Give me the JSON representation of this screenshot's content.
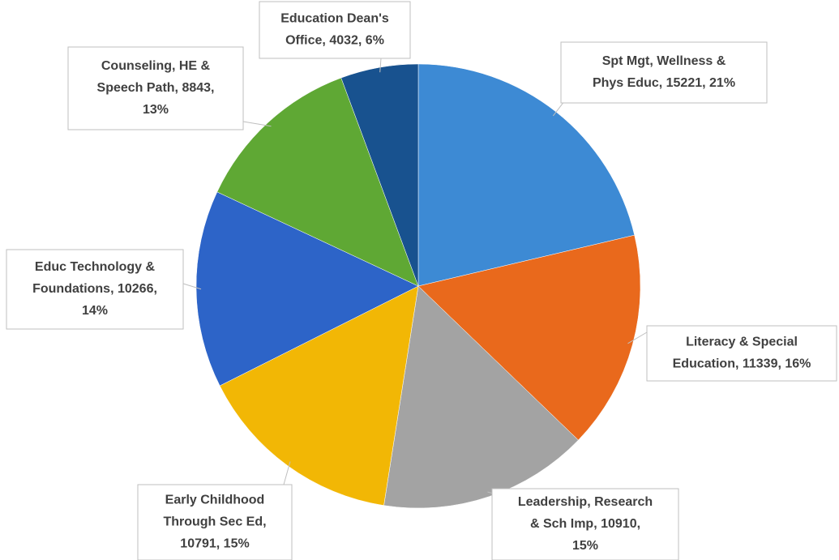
{
  "chart_data": {
    "type": "pie",
    "values": [
      15221,
      11339,
      10910,
      10791,
      10266,
      8843,
      4032
    ],
    "value_labels": [
      [
        "Spt Mgt, Wellness &",
        "Phys Educ, 15221, 21%"
      ],
      [
        "Literacy & Special",
        "Education, 11339, 16%"
      ],
      [
        "Leadership, Research",
        "& Sch Imp, 10910,",
        "15%"
      ],
      [
        "Early Childhood",
        "Through Sec Ed,",
        "10791, 15%"
      ],
      [
        "Educ Technology &",
        "Foundations, 10266,",
        "14%"
      ],
      [
        "Counseling, HE &",
        "Speech Path, 8843,",
        "13%"
      ],
      [
        "Education Dean's",
        "Office, 4032, 6%"
      ]
    ],
    "colors": [
      "#3d8ad4",
      "#e9691c",
      "#a3a3a3",
      "#f2b705",
      "#2d64c8",
      "#5fa834",
      "#18528f"
    ]
  }
}
